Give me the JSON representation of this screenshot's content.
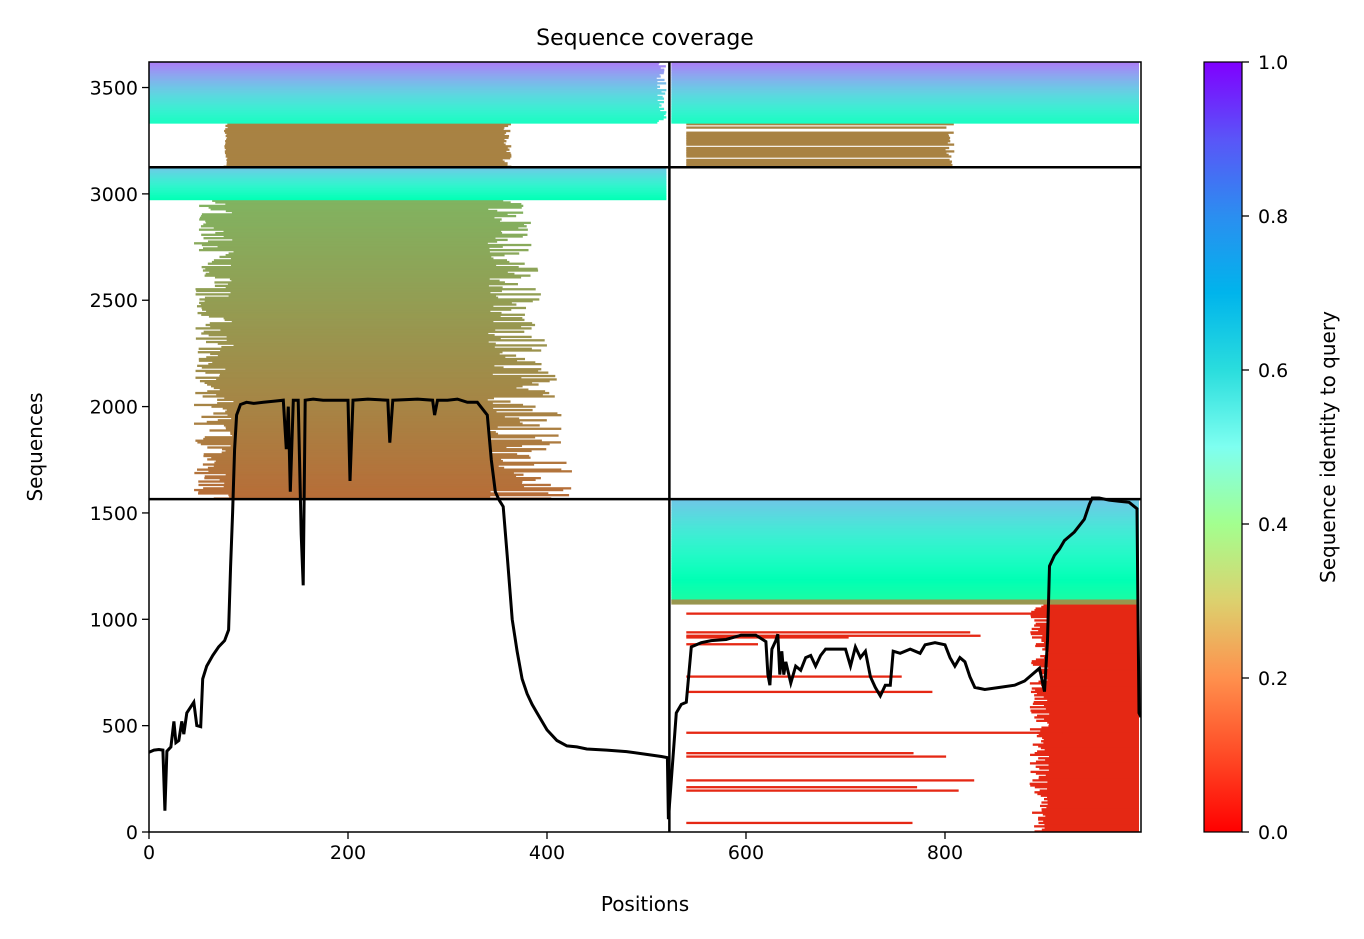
{
  "chart_data": {
    "type": "heatmap",
    "title": "Sequence coverage",
    "xlabel": "Positions",
    "ylabel": "Sequences",
    "colorbar_label": "Sequence identity to query",
    "colormap": "rainbow_r",
    "xlim": [
      0,
      997
    ],
    "ylim": [
      0,
      3620
    ],
    "x_ticks": [
      0,
      200,
      400,
      600,
      800
    ],
    "x_tick_labels": [
      "0",
      "200",
      "400",
      "600",
      "800"
    ],
    "y_ticks": [
      0,
      500,
      1000,
      1500,
      2000,
      2500,
      3000,
      3500
    ],
    "y_tick_labels": [
      "0",
      "500",
      "1000",
      "1500",
      "2000",
      "2500",
      "3000",
      "3500"
    ],
    "colorbar_ticks": [
      0.0,
      0.2,
      0.4,
      0.6,
      0.8,
      1.0
    ],
    "colorbar_tick_labels": [
      "0.0",
      "0.2",
      "0.4",
      "0.6",
      "0.8",
      "1.0"
    ],
    "chain_boundaries_x": [
      523
    ],
    "chain_boundaries_y": [
      1565,
      3125
    ],
    "coverage_line": {
      "color": "#000000",
      "points": [
        [
          0,
          375
        ],
        [
          5,
          385
        ],
        [
          10,
          388
        ],
        [
          14,
          385
        ],
        [
          16,
          100
        ],
        [
          18,
          380
        ],
        [
          22,
          400
        ],
        [
          25,
          520
        ],
        [
          27,
          420
        ],
        [
          30,
          430
        ],
        [
          33,
          520
        ],
        [
          35,
          460
        ],
        [
          38,
          560
        ],
        [
          45,
          610
        ],
        [
          48,
          500
        ],
        [
          52,
          495
        ],
        [
          54,
          720
        ],
        [
          58,
          780
        ],
        [
          64,
          830
        ],
        [
          70,
          870
        ],
        [
          76,
          900
        ],
        [
          80,
          950
        ],
        [
          82,
          1250
        ],
        [
          84,
          1500
        ],
        [
          86,
          1800
        ],
        [
          88,
          1960
        ],
        [
          92,
          2010
        ],
        [
          98,
          2020
        ],
        [
          105,
          2015
        ],
        [
          115,
          2020
        ],
        [
          125,
          2025
        ],
        [
          135,
          2030
        ],
        [
          138,
          1800
        ],
        [
          140,
          2000
        ],
        [
          142,
          1600
        ],
        [
          145,
          2030
        ],
        [
          150,
          2030
        ],
        [
          153,
          1400
        ],
        [
          155,
          1160
        ],
        [
          157,
          2030
        ],
        [
          165,
          2035
        ],
        [
          175,
          2030
        ],
        [
          185,
          2030
        ],
        [
          200,
          2030
        ],
        [
          202,
          1650
        ],
        [
          205,
          2030
        ],
        [
          220,
          2035
        ],
        [
          240,
          2030
        ],
        [
          242,
          1830
        ],
        [
          245,
          2030
        ],
        [
          270,
          2035
        ],
        [
          285,
          2030
        ],
        [
          287,
          1960
        ],
        [
          290,
          2030
        ],
        [
          300,
          2030
        ],
        [
          310,
          2035
        ],
        [
          320,
          2020
        ],
        [
          330,
          2020
        ],
        [
          340,
          1960
        ],
        [
          344,
          1750
        ],
        [
          348,
          1600
        ],
        [
          352,
          1560
        ],
        [
          356,
          1530
        ],
        [
          360,
          1300
        ],
        [
          365,
          1000
        ],
        [
          370,
          850
        ],
        [
          375,
          720
        ],
        [
          380,
          650
        ],
        [
          385,
          600
        ],
        [
          390,
          560
        ],
        [
          400,
          480
        ],
        [
          410,
          430
        ],
        [
          420,
          405
        ],
        [
          430,
          400
        ],
        [
          440,
          390
        ],
        [
          460,
          385
        ],
        [
          480,
          378
        ],
        [
          500,
          365
        ],
        [
          515,
          355
        ],
        [
          521,
          350
        ],
        [
          522,
          60
        ],
        [
          525,
          250
        ],
        [
          530,
          560
        ],
        [
          535,
          600
        ],
        [
          540,
          610
        ],
        [
          545,
          870
        ],
        [
          555,
          890
        ],
        [
          565,
          900
        ],
        [
          580,
          905
        ],
        [
          595,
          925
        ],
        [
          610,
          925
        ],
        [
          620,
          895
        ],
        [
          622,
          740
        ],
        [
          624,
          690
        ],
        [
          626,
          860
        ],
        [
          630,
          900
        ],
        [
          632,
          930
        ],
        [
          634,
          740
        ],
        [
          636,
          850
        ],
        [
          638,
          740
        ],
        [
          640,
          800
        ],
        [
          645,
          700
        ],
        [
          650,
          780
        ],
        [
          655,
          760
        ],
        [
          660,
          820
        ],
        [
          665,
          830
        ],
        [
          670,
          780
        ],
        [
          675,
          830
        ],
        [
          680,
          860
        ],
        [
          690,
          860
        ],
        [
          700,
          860
        ],
        [
          705,
          780
        ],
        [
          710,
          870
        ],
        [
          715,
          820
        ],
        [
          720,
          850
        ],
        [
          725,
          730
        ],
        [
          730,
          680
        ],
        [
          735,
          640
        ],
        [
          740,
          690
        ],
        [
          745,
          690
        ],
        [
          748,
          850
        ],
        [
          755,
          840
        ],
        [
          765,
          860
        ],
        [
          775,
          840
        ],
        [
          780,
          880
        ],
        [
          790,
          890
        ],
        [
          800,
          880
        ],
        [
          805,
          820
        ],
        [
          810,
          780
        ],
        [
          815,
          820
        ],
        [
          820,
          800
        ],
        [
          825,
          730
        ],
        [
          830,
          680
        ],
        [
          840,
          670
        ],
        [
          855,
          680
        ],
        [
          870,
          690
        ],
        [
          880,
          710
        ],
        [
          895,
          770
        ],
        [
          900,
          660
        ],
        [
          903,
          900
        ],
        [
          905,
          1250
        ],
        [
          910,
          1300
        ],
        [
          915,
          1330
        ],
        [
          920,
          1370
        ],
        [
          930,
          1410
        ],
        [
          940,
          1470
        ],
        [
          945,
          1540
        ],
        [
          948,
          1570
        ],
        [
          955,
          1570
        ],
        [
          965,
          1560
        ],
        [
          975,
          1555
        ],
        [
          985,
          1550
        ],
        [
          993,
          1520
        ],
        [
          995,
          560
        ],
        [
          997,
          540
        ]
      ]
    }
  }
}
